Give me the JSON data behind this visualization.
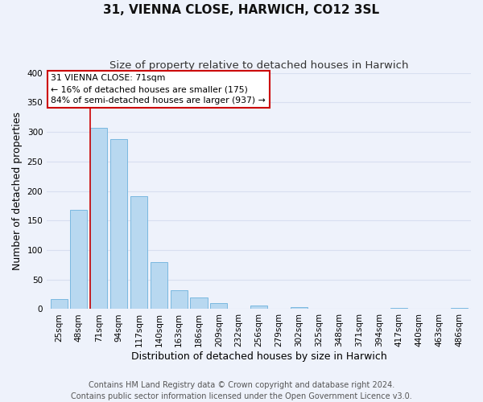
{
  "title": "31, VIENNA CLOSE, HARWICH, CO12 3SL",
  "subtitle": "Size of property relative to detached houses in Harwich",
  "xlabel": "Distribution of detached houses by size in Harwich",
  "ylabel": "Number of detached properties",
  "bar_labels": [
    "25sqm",
    "48sqm",
    "71sqm",
    "94sqm",
    "117sqm",
    "140sqm",
    "163sqm",
    "186sqm",
    "209sqm",
    "232sqm",
    "256sqm",
    "279sqm",
    "302sqm",
    "325sqm",
    "348sqm",
    "371sqm",
    "394sqm",
    "417sqm",
    "440sqm",
    "463sqm",
    "486sqm"
  ],
  "bar_values": [
    17,
    168,
    307,
    288,
    191,
    79,
    32,
    19,
    10,
    0,
    6,
    0,
    3,
    0,
    0,
    0,
    0,
    2,
    0,
    0,
    2
  ],
  "bar_color": "#b8d8f0",
  "bar_edge_color": "#7ab8e0",
  "marker_index": 2,
  "marker_color": "#cc0000",
  "ylim": [
    0,
    400
  ],
  "yticks": [
    0,
    50,
    100,
    150,
    200,
    250,
    300,
    350,
    400
  ],
  "annotation_title": "31 VIENNA CLOSE: 71sqm",
  "annotation_line1": "← 16% of detached houses are smaller (175)",
  "annotation_line2": "84% of semi-detached houses are larger (937) →",
  "annotation_box_color": "#ffffff",
  "annotation_box_edge": "#cc0000",
  "footer_line1": "Contains HM Land Registry data © Crown copyright and database right 2024.",
  "footer_line2": "Contains public sector information licensed under the Open Government Licence v3.0.",
  "background_color": "#eef2fb",
  "grid_color": "#d8dff0",
  "title_fontsize": 11,
  "subtitle_fontsize": 9.5,
  "axis_label_fontsize": 9,
  "tick_fontsize": 7.5,
  "footer_fontsize": 7
}
